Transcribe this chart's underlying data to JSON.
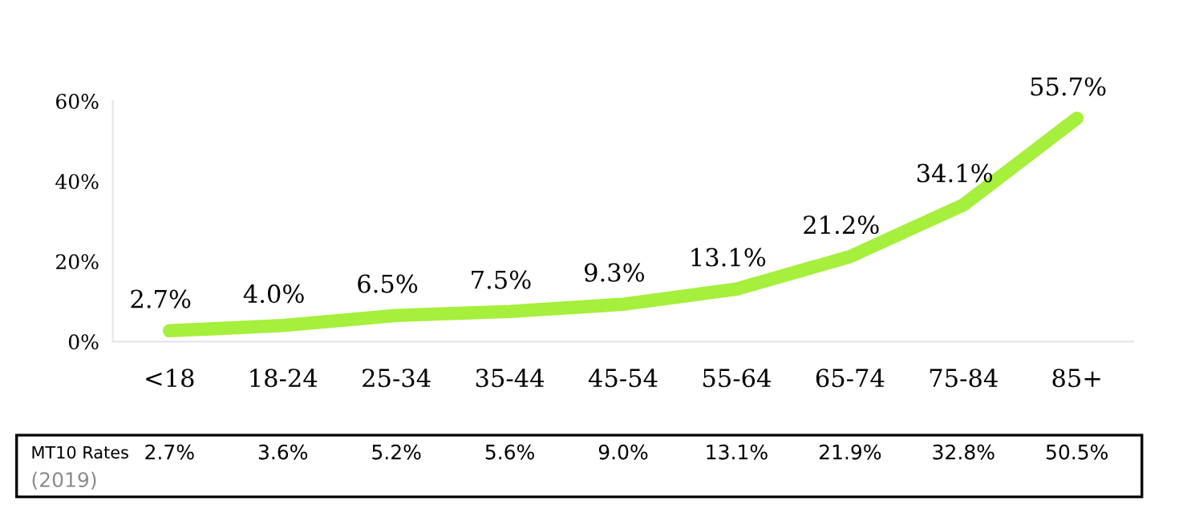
{
  "chart_data": {
    "type": "line",
    "categories": [
      "<18",
      "18-24",
      "25-34",
      "35-44",
      "45-54",
      "55-64",
      "65-74",
      "75-84",
      "85+"
    ],
    "series": [
      {
        "color": "#a6ef3c",
        "values": [
          2.7,
          4.0,
          6.5,
          7.5,
          9.3,
          13.1,
          21.2,
          34.1,
          55.7
        ],
        "value_labels": [
          "2.7%",
          "4.0%",
          "6.5%",
          "7.5%",
          "9.3%",
          "13.1%",
          "21.2%",
          "34.1%",
          "55.7%"
        ]
      }
    ],
    "ylim": [
      0,
      60
    ],
    "yticks": [
      {
        "value": 0,
        "label": "0%"
      },
      {
        "value": 20,
        "label": "20%"
      },
      {
        "value": 40,
        "label": "40%"
      },
      {
        "value": 60,
        "label": "60%"
      }
    ],
    "grid": false,
    "legend": false,
    "marker": "none",
    "line_style": "solid",
    "annotations": [
      "MT10 Rates",
      "(2019)",
      "2.7%",
      "3.6%",
      "5.2%",
      "5.6%",
      "9.0%",
      "13.1%",
      "21.9%",
      "32.8%",
      "50.5%"
    ]
  }
}
